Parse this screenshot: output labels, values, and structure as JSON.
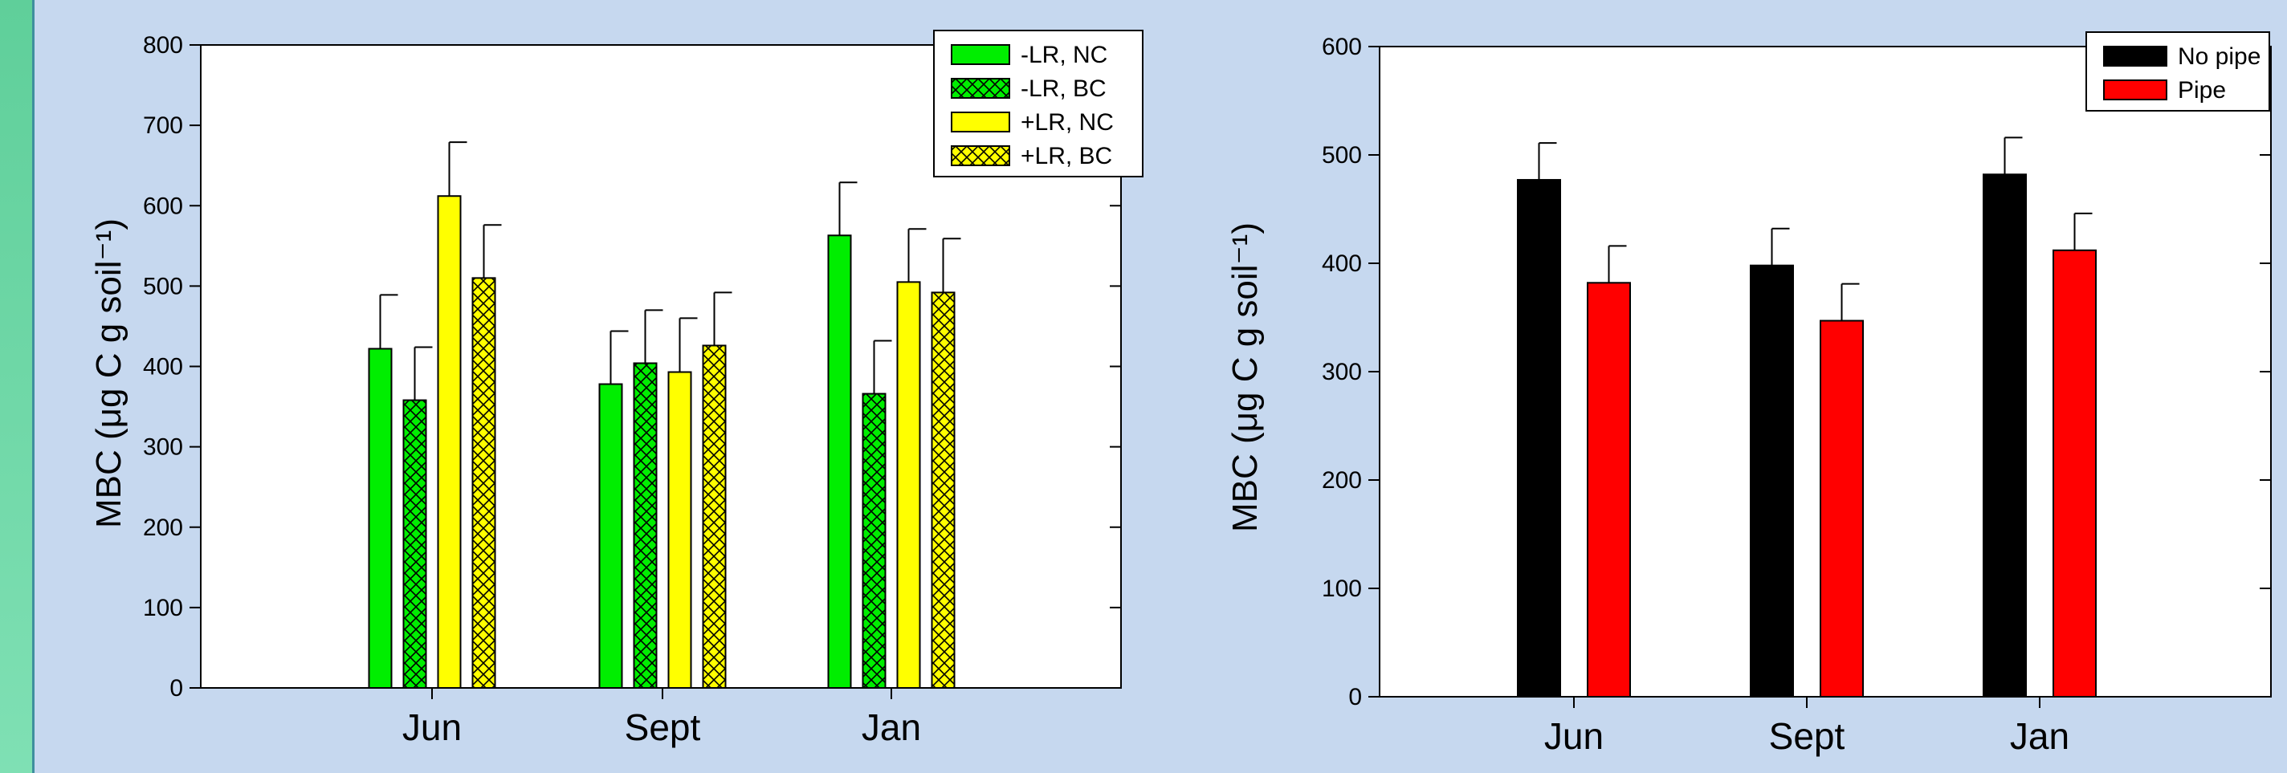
{
  "colors": {
    "background": "#c6d8ef",
    "green": "#00ee00",
    "yellow": "#ffff00",
    "black": "#000000",
    "red": "#ff0000"
  },
  "chart_data": [
    {
      "type": "bar",
      "ylabel": "MBC (μg C g soil⁻¹)",
      "ylim": [
        0,
        800
      ],
      "yticks": [
        0,
        100,
        200,
        300,
        400,
        500,
        600,
        700,
        800
      ],
      "categories": [
        "Jun",
        "Sept",
        "Jan"
      ],
      "error_bars": true,
      "legend": "top-right",
      "series": [
        {
          "name": "-LR, NC",
          "color": "#00ee00",
          "pattern": "solid",
          "values": [
            422,
            378,
            563
          ],
          "errors": [
            67,
            66,
            66
          ]
        },
        {
          "name": "-LR, BC",
          "color": "#00ee00",
          "pattern": "crosshatch",
          "values": [
            358,
            404,
            366
          ],
          "errors": [
            66,
            66,
            66
          ]
        },
        {
          "name": "+LR, NC",
          "color": "#ffff00",
          "pattern": "solid",
          "values": [
            612,
            393,
            505
          ],
          "errors": [
            67,
            67,
            66
          ]
        },
        {
          "name": "+LR, BC",
          "color": "#ffff00",
          "pattern": "crosshatch",
          "values": [
            510,
            426,
            492
          ],
          "errors": [
            66,
            66,
            67
          ]
        }
      ]
    },
    {
      "type": "bar",
      "ylabel": "MBC (μg C g soil⁻¹)",
      "ylim": [
        0,
        600
      ],
      "yticks": [
        0,
        100,
        200,
        300,
        400,
        500,
        600
      ],
      "categories": [
        "Jun",
        "Sept",
        "Jan"
      ],
      "error_bars": true,
      "legend": "top-right",
      "series": [
        {
          "name": "No pipe",
          "color": "#000000",
          "pattern": "solid",
          "values": [
            477,
            398,
            482
          ],
          "errors": [
            34,
            34,
            34
          ]
        },
        {
          "name": "Pipe",
          "color": "#ff0000",
          "pattern": "solid",
          "values": [
            382,
            347,
            412
          ],
          "errors": [
            34,
            34,
            34
          ]
        }
      ]
    }
  ]
}
